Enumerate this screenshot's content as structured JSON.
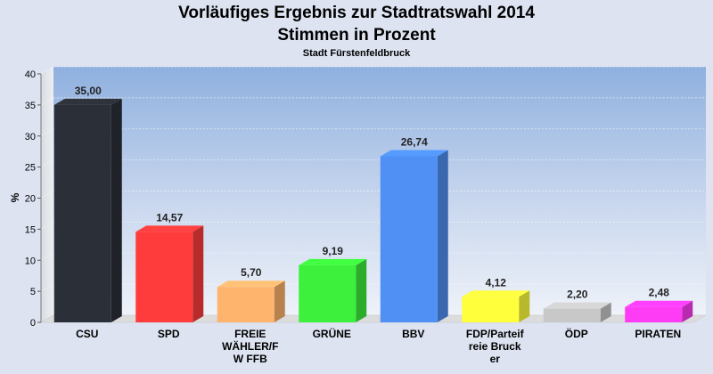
{
  "chart_data": {
    "type": "bar",
    "title": "Vorläufiges Ergebnis zur Stadtratswahl 2014",
    "title_line2": "Stimmen in Prozent",
    "subtitle": "Stadt Fürstenfeldbruck",
    "ylabel": "%",
    "ylim": [
      0,
      40
    ],
    "yticks": [
      0,
      5,
      10,
      15,
      20,
      25,
      30,
      35,
      40
    ],
    "grid": true,
    "categories": [
      "CSU",
      "SPD",
      "FREIE WÄHLER/FW FFB",
      "GRÜNE",
      "BBV",
      "FDP/Parteifreie Bruck er",
      "ÖDP",
      "PIRATEN"
    ],
    "category_lines": [
      [
        "CSU"
      ],
      [
        "SPD"
      ],
      [
        "FREIE",
        "WÄHLER/F",
        "W FFB"
      ],
      [
        "GRÜNE"
      ],
      [
        "BBV"
      ],
      [
        "FDP/Parteif",
        "reie Bruck",
        "er"
      ],
      [
        "ÖDP"
      ],
      [
        "PIRATEN"
      ]
    ],
    "values": [
      35.0,
      14.57,
      5.7,
      9.19,
      26.74,
      4.12,
      2.2,
      2.48
    ],
    "value_labels": [
      "35,00",
      "14,57",
      "5,70",
      "9,19",
      "26,74",
      "4,12",
      "2,20",
      "2,48"
    ],
    "colors": [
      "#2b2f38",
      "#ff3c3c",
      "#ffb46e",
      "#3cf03c",
      "#5090f5",
      "#ffff3c",
      "#c8c8c8",
      "#ff3cf5"
    ]
  }
}
